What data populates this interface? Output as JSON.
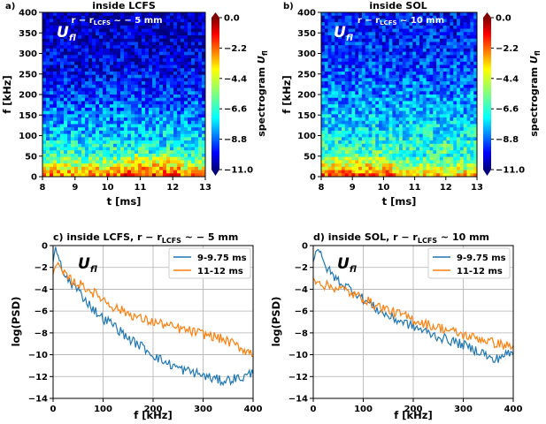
{
  "figure": "four-panel spectrogram and PSD figure",
  "colormap": [
    "#00007f",
    "#0000ff",
    "#007fff",
    "#00ffff",
    "#7fff7f",
    "#ffff00",
    "#ff7f00",
    "#ff0000",
    "#7f0000"
  ],
  "spectrograms": [
    {
      "panel_label": "a)",
      "title": "inside LCFS",
      "annotation": {
        "r": "r − r",
        "sub": "LCFS",
        "rest": " ~ − 5 mm"
      },
      "overlay": {
        "symbol": "U",
        "sub": "fl"
      },
      "xlabel": "t [ms]",
      "ylabel": "f [kHz]",
      "xticks": [
        "8",
        "9",
        "10",
        "11",
        "12",
        "13"
      ],
      "yticks": [
        "0",
        "50",
        "100",
        "150",
        "200",
        "250",
        "300",
        "350",
        "400"
      ],
      "colorbar": {
        "label": "spectrogram ",
        "label_symbol": "U",
        "label_sub": "fl",
        "ticks": [
          "0.0",
          "−2.2",
          "−4.4",
          "−6.6",
          "−8.8",
          "−11.0"
        ],
        "range": [
          -11,
          0
        ]
      }
    },
    {
      "panel_label": "b)",
      "title": "inside SOL",
      "annotation": {
        "r": "r − r",
        "sub": "LCFS",
        "rest": " ~ 10 mm"
      },
      "overlay": {
        "symbol": "U",
        "sub": "fl"
      },
      "xlabel": "t [ms]",
      "ylabel": "f [kHz]",
      "xticks": [
        "8",
        "9",
        "10",
        "11",
        "12",
        "13"
      ],
      "yticks": [
        "0",
        "50",
        "100",
        "150",
        "200",
        "250",
        "300",
        "350",
        "400"
      ],
      "colorbar": {
        "label": "spectrogram ",
        "label_symbol": "U",
        "label_sub": "fl",
        "ticks": [
          "0.0",
          "−2.2",
          "−4.4",
          "−6.6",
          "−8.8",
          "−11.0"
        ],
        "range": [
          -11,
          0
        ]
      }
    }
  ],
  "psd_panels": [
    {
      "panel_label": "c)",
      "title": {
        "pre": "inside LCFS, r − r",
        "sub": "LCFS",
        "post": " ~ − 5 mm"
      },
      "overlay": {
        "symbol": "U",
        "sub": "fl"
      },
      "xlabel": "f [kHz]",
      "ylabel": "log(PSD)",
      "xticks": [
        "0",
        "100",
        "200",
        "300",
        "400"
      ],
      "yticks": [
        "0",
        "−2",
        "−4",
        "−6",
        "−8",
        "−10",
        "−12",
        "−14"
      ],
      "legend": [
        "9-9.75 ms",
        "11-12 ms"
      ]
    },
    {
      "panel_label": "d)",
      "title": {
        "pre": "inside SOL, r − r",
        "sub": "LCFS",
        "post": " ~ 10 mm"
      },
      "overlay": {
        "symbol": "U",
        "sub": "fl"
      },
      "xlabel": "f [kHz]",
      "ylabel": "log(PSD)",
      "xticks": [
        "0",
        "100",
        "200",
        "300",
        "400"
      ],
      "yticks": [
        "0",
        "−2",
        "−4",
        "−6",
        "−8",
        "−10",
        "−12",
        "−14"
      ],
      "legend": [
        "9-9.75 ms",
        "11-12 ms"
      ]
    }
  ],
  "chart_data": [
    {
      "type": "heatmap",
      "title": "inside LCFS",
      "xlabel": "t [ms]",
      "ylabel": "f [kHz]",
      "xlim": [
        8,
        13
      ],
      "ylim": [
        0,
        400
      ],
      "color_range": [
        -11.0,
        0.0
      ],
      "colorbar_label": "spectrogram Ufl",
      "profile_f_kHz": [
        0,
        25,
        50,
        100,
        150,
        200,
        250,
        300,
        350,
        400
      ],
      "profile_mean_value": [
        -2.5,
        -4.5,
        -6.2,
        -7.4,
        -8.2,
        -9.0,
        -9.6,
        -10.0,
        -10.3,
        -10.5
      ]
    },
    {
      "type": "heatmap",
      "title": "inside SOL",
      "xlabel": "t [ms]",
      "ylabel": "f [kHz]",
      "xlim": [
        8,
        13
      ],
      "ylim": [
        0,
        400
      ],
      "color_range": [
        -11.0,
        0.0
      ],
      "colorbar_label": "spectrogram Ufl",
      "profile_f_kHz": [
        0,
        25,
        50,
        100,
        150,
        200,
        250,
        300,
        350,
        400
      ],
      "profile_mean_value": [
        -2.8,
        -4.8,
        -6.0,
        -6.9,
        -7.6,
        -8.2,
        -8.7,
        -9.1,
        -9.4,
        -9.6
      ]
    },
    {
      "type": "line",
      "title": "c) inside LCFS, r − rLCFS ~ − 5 mm",
      "xlabel": "f [kHz]",
      "ylabel": "log(PSD)",
      "xlim": [
        0,
        400
      ],
      "ylim": [
        -14,
        0
      ],
      "series": [
        {
          "name": "9-9.75 ms",
          "color": "#1f77b4",
          "x": [
            0,
            5,
            10,
            20,
            40,
            60,
            80,
            100,
            120,
            140,
            160,
            180,
            200,
            220,
            240,
            260,
            280,
            300,
            320,
            340,
            360,
            380,
            400
          ],
          "y": [
            -1.4,
            -0.2,
            -1.0,
            -2.6,
            -3.6,
            -4.7,
            -5.8,
            -6.7,
            -7.2,
            -8.1,
            -8.8,
            -9.3,
            -10.0,
            -10.6,
            -11.0,
            -11.4,
            -11.6,
            -11.9,
            -12.2,
            -12.4,
            -12.2,
            -12.1,
            -11.6
          ]
        },
        {
          "name": "11-12 ms",
          "color": "#ff7f0e",
          "x": [
            0,
            5,
            10,
            20,
            40,
            60,
            80,
            100,
            120,
            140,
            160,
            180,
            200,
            220,
            240,
            260,
            280,
            300,
            320,
            340,
            360,
            380,
            400
          ],
          "y": [
            -2.5,
            -1.8,
            -1.7,
            -2.6,
            -3.3,
            -3.7,
            -4.3,
            -4.9,
            -5.6,
            -6.0,
            -6.4,
            -6.8,
            -7.0,
            -7.2,
            -7.5,
            -7.7,
            -7.9,
            -8.1,
            -8.3,
            -8.6,
            -9.0,
            -9.5,
            -9.9
          ]
        }
      ]
    },
    {
      "type": "line",
      "title": "d) inside SOL, r − rLCFS ~ 10 mm",
      "xlabel": "f [kHz]",
      "ylabel": "log(PSD)",
      "xlim": [
        0,
        400
      ],
      "ylim": [
        -14,
        0
      ],
      "series": [
        {
          "name": "9-9.75 ms",
          "color": "#1f77b4",
          "x": [
            0,
            5,
            10,
            20,
            40,
            60,
            80,
            100,
            120,
            140,
            160,
            180,
            200,
            220,
            240,
            260,
            280,
            300,
            320,
            340,
            360,
            380,
            400
          ],
          "y": [
            -1.5,
            -0.5,
            -0.3,
            -1.6,
            -2.8,
            -3.6,
            -4.1,
            -4.9,
            -5.6,
            -6.2,
            -6.7,
            -7.0,
            -7.4,
            -7.8,
            -8.2,
            -8.5,
            -8.8,
            -9.1,
            -9.5,
            -9.8,
            -10.6,
            -10.0,
            -9.9
          ]
        },
        {
          "name": "11-12 ms",
          "color": "#ff7f0e",
          "x": [
            0,
            5,
            10,
            20,
            40,
            60,
            80,
            100,
            120,
            140,
            160,
            180,
            200,
            220,
            240,
            260,
            280,
            300,
            320,
            340,
            360,
            380,
            400
          ],
          "y": [
            -3.0,
            -3.4,
            -3.2,
            -3.6,
            -3.8,
            -4.0,
            -4.5,
            -4.8,
            -5.4,
            -5.7,
            -6.1,
            -6.4,
            -6.8,
            -7.1,
            -7.4,
            -7.6,
            -7.9,
            -8.2,
            -8.4,
            -8.6,
            -8.9,
            -9.1,
            -9.3
          ]
        }
      ]
    }
  ]
}
